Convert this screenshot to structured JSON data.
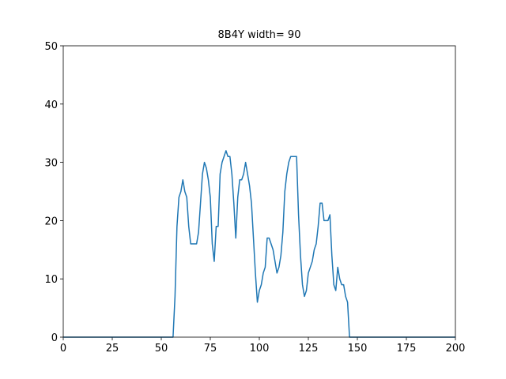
{
  "chart_data": {
    "type": "line",
    "title": "8B4Y width= 90",
    "x": [
      0,
      56,
      57,
      58,
      59,
      60,
      61,
      62,
      63,
      64,
      65,
      66,
      67,
      68,
      69,
      70,
      71,
      72,
      73,
      74,
      75,
      76,
      77,
      78,
      79,
      80,
      81,
      82,
      83,
      84,
      85,
      86,
      87,
      88,
      89,
      90,
      91,
      92,
      93,
      94,
      95,
      96,
      97,
      98,
      99,
      100,
      101,
      102,
      103,
      104,
      105,
      106,
      107,
      108,
      109,
      110,
      111,
      112,
      113,
      114,
      115,
      116,
      117,
      118,
      119,
      120,
      121,
      122,
      123,
      124,
      125,
      126,
      127,
      128,
      129,
      130,
      131,
      132,
      133,
      134,
      135,
      136,
      137,
      138,
      139,
      140,
      141,
      142,
      143,
      144,
      145,
      146,
      200
    ],
    "series": [
      {
        "color": "#1f77b4",
        "values": [
          0,
          0,
          7,
          19,
          24,
          25,
          27,
          25,
          24,
          19,
          16,
          16,
          16,
          16,
          18,
          23,
          28,
          30,
          29,
          27,
          24,
          16,
          13,
          19,
          19,
          28,
          30,
          31,
          32,
          31,
          31,
          28,
          23,
          17,
          24,
          27,
          27,
          28,
          30,
          28,
          26,
          23,
          17,
          11,
          6,
          8,
          9,
          11,
          12,
          17,
          17,
          16,
          15,
          13,
          11,
          12,
          14,
          18,
          25,
          28,
          30,
          31,
          31,
          31,
          31,
          21,
          14,
          9,
          7,
          8,
          11,
          12,
          13,
          15,
          16,
          19,
          23,
          23,
          20,
          20,
          20,
          21,
          14,
          9,
          8,
          12,
          10,
          9,
          9,
          7,
          6,
          0,
          0
        ]
      }
    ],
    "xlim": [
      0,
      200
    ],
    "xticks": [
      0,
      25,
      50,
      75,
      100,
      125,
      150,
      175,
      200
    ],
    "ylim": [
      0,
      50
    ],
    "yticks": [
      0,
      10,
      20,
      30,
      40,
      50
    ]
  }
}
